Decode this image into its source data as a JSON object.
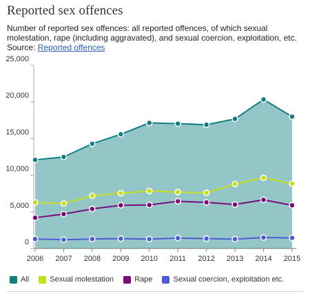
{
  "title": "Reported sex offences",
  "description": "Number of reported sex offences: all reported offences, of which sexual molestation, rape (including aggravated), and sexual coercion, exploitation, etc. Source: ",
  "source_link": "Reported offences",
  "chart_data": {
    "type": "area",
    "x": [
      "2006",
      "2007",
      "2008",
      "2009",
      "2010",
      "2011",
      "2012",
      "2013",
      "2014",
      "2015"
    ],
    "ylim": [
      0,
      25000
    ],
    "yticks": [
      0,
      5000,
      10000,
      15000,
      20000,
      25000
    ],
    "ytick_labels": [
      "0",
      "5,000",
      "10,000",
      "15,000",
      "20,000",
      "25,000"
    ],
    "grid": false,
    "legend_position": "bottom",
    "series": [
      {
        "name": "All",
        "color": "#127e84",
        "fill": "#94c6c8",
        "values": [
          12100,
          12500,
          14300,
          15600,
          17150,
          17050,
          16900,
          17700,
          20350,
          18000
        ]
      },
      {
        "name": "Sexual molestation",
        "color": "#c5df1c",
        "values": [
          6300,
          6150,
          7200,
          7550,
          7850,
          7700,
          7600,
          8800,
          9650,
          8850
        ]
      },
      {
        "name": "Rape",
        "color": "#7d0a7a",
        "values": [
          4200,
          4700,
          5400,
          5900,
          5950,
          6450,
          6300,
          6000,
          6650,
          5900
        ]
      },
      {
        "name": "Sexual coercion, exploitation etc.",
        "color": "#4f5bd5",
        "values": [
          1300,
          1200,
          1300,
          1350,
          1280,
          1420,
          1350,
          1280,
          1500,
          1450
        ]
      }
    ]
  }
}
